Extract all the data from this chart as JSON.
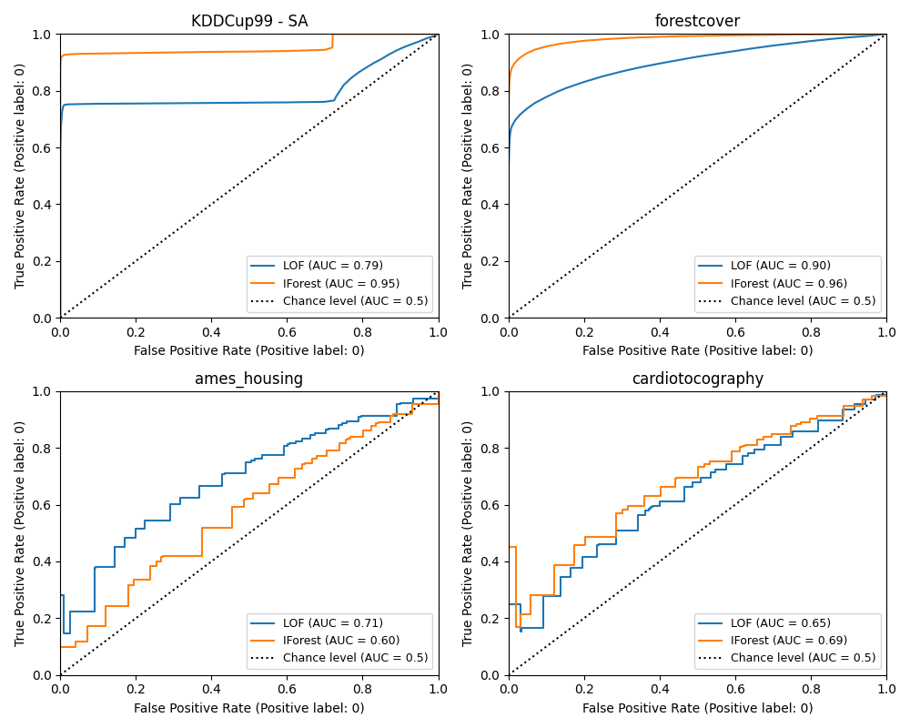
{
  "subplots": [
    {
      "title": "KDDCup99 - SA",
      "lof_auc": 0.79,
      "iforest_auc": 0.95
    },
    {
      "title": "forestcover",
      "lof_auc": 0.9,
      "iforest_auc": 0.96
    },
    {
      "title": "ames_housing",
      "lof_auc": 0.71,
      "iforest_auc": 0.6
    },
    {
      "title": "cardiotocography",
      "lof_auc": 0.65,
      "iforest_auc": 0.69
    }
  ],
  "lof_color": "#1f77b4",
  "iforest_color": "#ff7f0e",
  "chance_color": "black",
  "xlabel": "False Positive Rate (Positive label: 0)",
  "ylabel": "True Positive Rate (Positive label: 0)",
  "xlim": [
    0.0,
    1.0
  ],
  "ylim": [
    0.0,
    1.0
  ]
}
